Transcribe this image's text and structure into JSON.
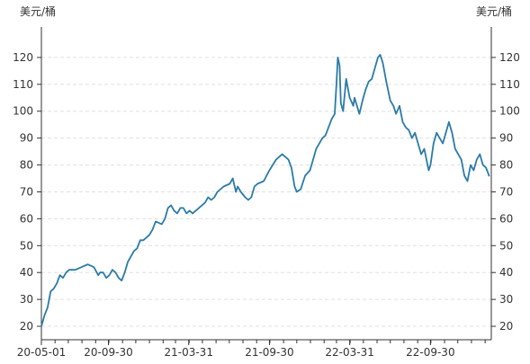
{
  "chart_data": {
    "type": "line",
    "title": "",
    "ylabel_left": "美元/桶",
    "ylabel_right": "美元/桶",
    "ylim": [
      15,
      130
    ],
    "y_ticks": [
      20,
      30,
      40,
      50,
      60,
      70,
      80,
      90,
      100,
      110,
      120
    ],
    "x_range": [
      "2020-05-01",
      "2023-02-15"
    ],
    "x_ticks": [
      {
        "date": "2020-05-01",
        "label": "20-05-01"
      },
      {
        "date": "2020-09-30",
        "label": "20-09-30"
      },
      {
        "date": "2021-03-31",
        "label": "21-03-31"
      },
      {
        "date": "2021-09-30",
        "label": "21-09-30"
      },
      {
        "date": "2022-03-31",
        "label": "22-03-31"
      },
      {
        "date": "2022-09-30",
        "label": "22-09-30"
      }
    ],
    "grid": "horizontal-dashed",
    "line_color": "#2b7ba6",
    "series": [
      {
        "name": "",
        "x": [
          "2020-05-01",
          "2020-05-08",
          "2020-05-15",
          "2020-05-22",
          "2020-05-29",
          "2020-06-05",
          "2020-06-12",
          "2020-06-19",
          "2020-06-26",
          "2020-07-03",
          "2020-07-17",
          "2020-07-31",
          "2020-08-14",
          "2020-08-28",
          "2020-09-07",
          "2020-09-11",
          "2020-09-18",
          "2020-09-25",
          "2020-10-02",
          "2020-10-09",
          "2020-10-16",
          "2020-10-23",
          "2020-10-30",
          "2020-11-06",
          "2020-11-13",
          "2020-11-20",
          "2020-11-27",
          "2020-12-04",
          "2020-12-11",
          "2020-12-18",
          "2020-12-25",
          "2021-01-01",
          "2021-01-08",
          "2021-01-15",
          "2021-01-29",
          "2021-02-05",
          "2021-02-12",
          "2021-02-19",
          "2021-02-26",
          "2021-03-05",
          "2021-03-12",
          "2021-03-19",
          "2021-03-26",
          "2021-04-02",
          "2021-04-09",
          "2021-04-23",
          "2021-05-07",
          "2021-05-14",
          "2021-05-21",
          "2021-05-28",
          "2021-06-04",
          "2021-06-18",
          "2021-07-02",
          "2021-07-09",
          "2021-07-16",
          "2021-07-20",
          "2021-07-27",
          "2021-08-06",
          "2021-08-13",
          "2021-08-20",
          "2021-08-27",
          "2021-09-03",
          "2021-09-17",
          "2021-09-30",
          "2021-10-15",
          "2021-10-29",
          "2021-11-05",
          "2021-11-12",
          "2021-11-19",
          "2021-11-26",
          "2021-12-01",
          "2021-12-10",
          "2021-12-20",
          "2021-12-31",
          "2022-01-14",
          "2022-01-28",
          "2022-02-04",
          "2022-02-11",
          "2022-02-18",
          "2022-02-25",
          "2022-03-01",
          "2022-03-04",
          "2022-03-08",
          "2022-03-11",
          "2022-03-16",
          "2022-03-23",
          "2022-03-31",
          "2022-04-08",
          "2022-04-11",
          "2022-04-22",
          "2022-04-29",
          "2022-05-06",
          "2022-05-13",
          "2022-05-20",
          "2022-05-27",
          "2022-06-03",
          "2022-06-08",
          "2022-06-14",
          "2022-06-22",
          "2022-07-01",
          "2022-07-08",
          "2022-07-14",
          "2022-07-22",
          "2022-07-29",
          "2022-08-05",
          "2022-08-12",
          "2022-08-19",
          "2022-08-26",
          "2022-09-02",
          "2022-09-09",
          "2022-09-16",
          "2022-09-26",
          "2022-09-30",
          "2022-10-07",
          "2022-10-14",
          "2022-10-21",
          "2022-10-28",
          "2022-11-04",
          "2022-11-11",
          "2022-11-18",
          "2022-11-25",
          "2022-12-02",
          "2022-12-09",
          "2022-12-16",
          "2022-12-23",
          "2022-12-30",
          "2023-01-06",
          "2023-01-13",
          "2023-01-20",
          "2023-01-27",
          "2023-02-03",
          "2023-02-10"
        ],
        "y": [
          20,
          24,
          27,
          33,
          34,
          36,
          39,
          38,
          40,
          41,
          41,
          42,
          43,
          42,
          39,
          40,
          40,
          38,
          39,
          41,
          40,
          38,
          37,
          40,
          44,
          46,
          48,
          49,
          52,
          52,
          53,
          54,
          56,
          59,
          58,
          60,
          64,
          65,
          63,
          62,
          64,
          64,
          62,
          63,
          62,
          64,
          66,
          68,
          67,
          68,
          70,
          72,
          73,
          75,
          70,
          72,
          70,
          68,
          67,
          68,
          72,
          73,
          74,
          78,
          82,
          84,
          83,
          82,
          79,
          72,
          70,
          71,
          76,
          78,
          86,
          90,
          91,
          94,
          97,
          99,
          110,
          120,
          117,
          103,
          100,
          112,
          105,
          102,
          105,
          99,
          104,
          108,
          111,
          112,
          116,
          120,
          121,
          118,
          111,
          104,
          102,
          99,
          102,
          96,
          94,
          93,
          90,
          92,
          88,
          84,
          86,
          78,
          80,
          88,
          92,
          90,
          88,
          92,
          96,
          92,
          86,
          84,
          82,
          76,
          74,
          80,
          78,
          82,
          84,
          80,
          79,
          76
        ]
      }
    ]
  }
}
